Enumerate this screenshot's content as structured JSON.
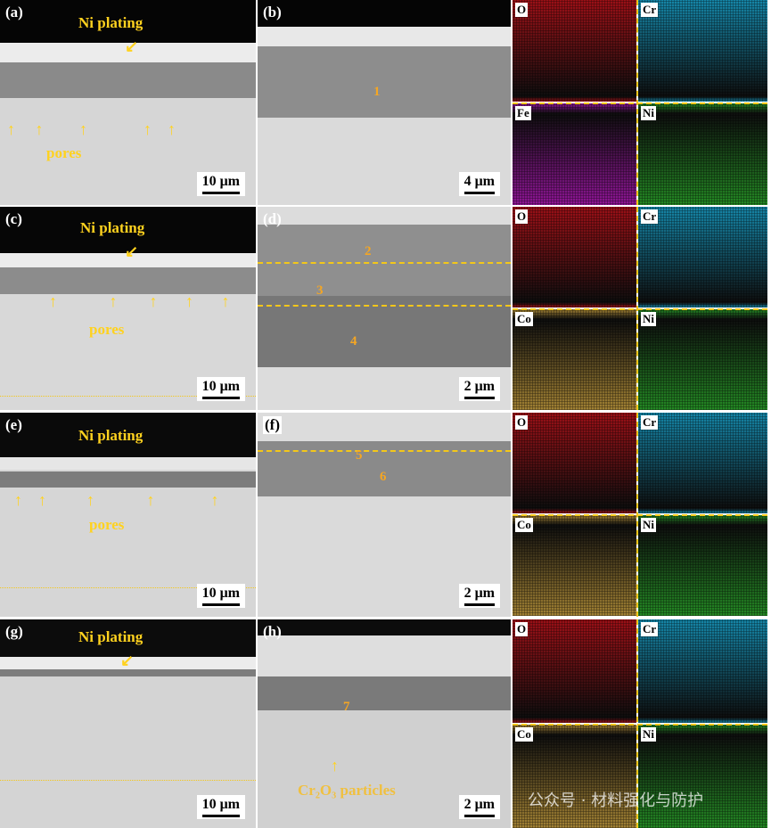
{
  "panels": {
    "a": {
      "label": "(a)",
      "ni": "Ni plating",
      "pores": "pores",
      "scale": "10 μm"
    },
    "b": {
      "label": "(b)",
      "points": [
        "1"
      ],
      "scale": "4 μm"
    },
    "c": {
      "label": "(c)",
      "ni": "Ni plating",
      "pores": "pores",
      "scale": "10 μm"
    },
    "d": {
      "label": "(d)",
      "points": [
        "2",
        "3",
        "4"
      ],
      "scale": "2 μm"
    },
    "e": {
      "label": "(e)",
      "ni": "Ni plating",
      "pores": "pores",
      "scale": "10 μm"
    },
    "f": {
      "label": "(f)",
      "points": [
        "5",
        "6"
      ],
      "scale": "2 μm"
    },
    "g": {
      "label": "(g)",
      "ni": "Ni plating",
      "scale": "10 μm"
    },
    "h": {
      "label": "(h)",
      "points": [
        "7"
      ],
      "particles": "Cr₂O₃ particles",
      "scale": "2 μm"
    }
  },
  "eds": [
    [
      "O",
      "Cr",
      "Fe",
      "Ni"
    ],
    [
      "O",
      "Cr",
      "Co",
      "Ni"
    ],
    [
      "O",
      "Cr",
      "Co",
      "Ni"
    ],
    [
      "O",
      "Cr",
      "Co",
      "Ni"
    ]
  ],
  "colors": {
    "O": "#c0141c",
    "Cr": "#1aa6d0",
    "Fe": "#b01ab8",
    "Co": "#c8a040",
    "Ni": "#2ca82c",
    "annotation": "#ffd21f"
  },
  "watermark": "公众号 · 材料强化与防护"
}
